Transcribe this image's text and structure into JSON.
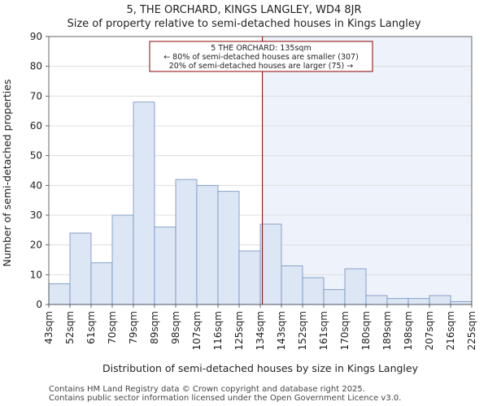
{
  "chart_data": {
    "type": "bar",
    "title": "5, THE ORCHARD, KINGS LANGLEY, WD4 8JR",
    "subtitle": "Size of property relative to semi-detached houses in Kings Langley",
    "xlabel": "Distribution of semi-detached houses by size in Kings Langley",
    "ylabel": "Number of semi-detached properties",
    "ylim": [
      0,
      90
    ],
    "yticks": [
      0,
      10,
      20,
      30,
      40,
      50,
      60,
      70,
      80,
      90
    ],
    "bin_edges": [
      "43sqm",
      "52sqm",
      "61sqm",
      "70sqm",
      "79sqm",
      "89sqm",
      "98sqm",
      "107sqm",
      "116sqm",
      "125sqm",
      "134sqm",
      "143sqm",
      "152sqm",
      "161sqm",
      "170sqm",
      "180sqm",
      "189sqm",
      "198sqm",
      "207sqm",
      "216sqm",
      "225sqm"
    ],
    "values": [
      7,
      24,
      14,
      30,
      68,
      26,
      42,
      40,
      38,
      18,
      27,
      13,
      9,
      5,
      12,
      3,
      2,
      2,
      3,
      1
    ],
    "marker": {
      "value_sqm": 135,
      "bin_position": 10.1,
      "color": "#8b0000"
    },
    "annotation": {
      "line1": "5 THE ORCHARD: 135sqm",
      "line2": "← 80% of semi-detached houses are smaller (307)",
      "line3": "20% of semi-detached houses are larger (75) →"
    },
    "colors": {
      "bar_fill": "#dce6f4",
      "bar_edge": "#6f8fc0",
      "shaded_region": "#eef2fa",
      "grid": "#d9d9d9"
    }
  },
  "footer": {
    "line1": "Contains HM Land Registry data © Crown copyright and database right 2025.",
    "line2": "Contains public sector information licensed under the Open Government Licence v3.0."
  }
}
